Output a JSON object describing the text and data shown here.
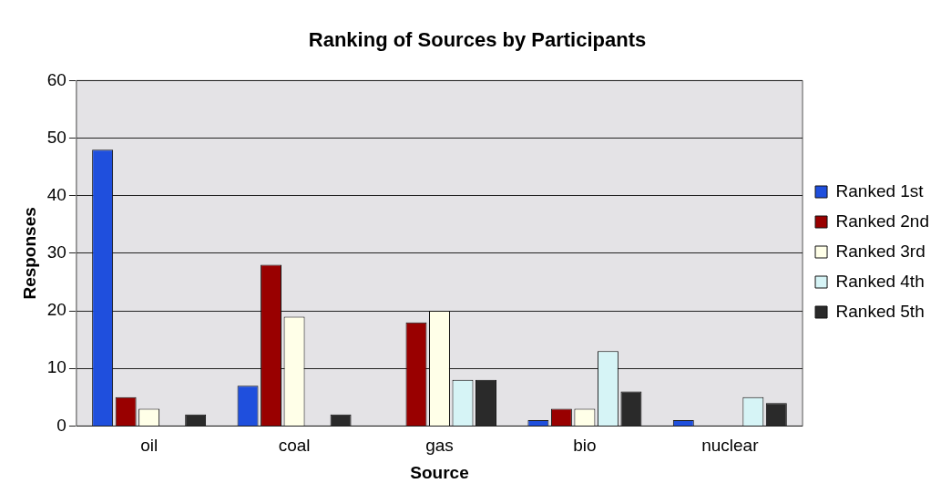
{
  "chart_data": {
    "type": "bar",
    "title": "Ranking of Sources by Participants",
    "xlabel": "Source",
    "ylabel": "Responses",
    "categories": [
      "oil",
      "coal",
      "gas",
      "bio",
      "nuclear"
    ],
    "series": [
      {
        "name": "Ranked 1st",
        "color": "#1f4fdd",
        "values": [
          48,
          7,
          0,
          1,
          1
        ]
      },
      {
        "name": "Ranked 2nd",
        "color": "#990000",
        "values": [
          5,
          28,
          18,
          3,
          0
        ]
      },
      {
        "name": "Ranked 3rd",
        "color": "#ffffe8",
        "values": [
          3,
          19,
          20,
          3,
          0
        ]
      },
      {
        "name": "Ranked 4th",
        "color": "#d6f4f6",
        "values": [
          0,
          0,
          8,
          13,
          5
        ]
      },
      {
        "name": "Ranked 5th",
        "color": "#2a2a2a",
        "values": [
          2,
          2,
          8,
          6,
          4
        ]
      }
    ],
    "ylim": [
      0,
      60
    ],
    "yticks": [
      0,
      10,
      20,
      30,
      40,
      50,
      60
    ],
    "grid": "y",
    "legend": "right"
  }
}
